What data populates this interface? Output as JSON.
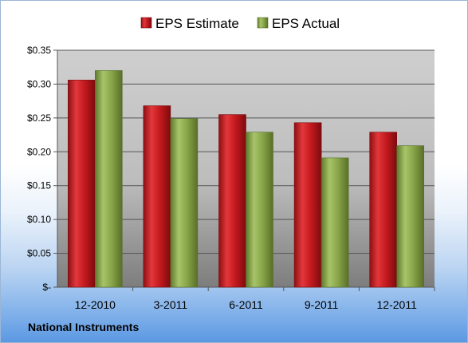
{
  "footer": {
    "company": "National Instruments"
  },
  "colors": {
    "estimate": "#c0171c",
    "actual": "#8ba84a",
    "plot_bg_top": "#c4c4c4",
    "plot_bg_bottom": "#8a8a8a"
  },
  "chart_data": {
    "type": "bar",
    "title": "",
    "xlabel": "",
    "ylabel": "",
    "categories": [
      "12-2010",
      "3-2011",
      "6-2011",
      "9-2011",
      "12-2011"
    ],
    "series": [
      {
        "name": "EPS Estimate",
        "values": [
          0.306,
          0.268,
          0.255,
          0.243,
          0.229
        ]
      },
      {
        "name": "EPS Actual",
        "values": [
          0.32,
          0.249,
          0.229,
          0.191,
          0.209
        ]
      }
    ],
    "ylim": [
      0,
      0.35
    ],
    "yticks": [
      0,
      0.05,
      0.1,
      0.15,
      0.2,
      0.25,
      0.3,
      0.35
    ],
    "ytick_labels": [
      "$-",
      "$0.05",
      "$0.10",
      "$0.15",
      "$0.20",
      "$0.25",
      "$0.30",
      "$0.35"
    ],
    "grid": true,
    "legend": "top-center"
  }
}
